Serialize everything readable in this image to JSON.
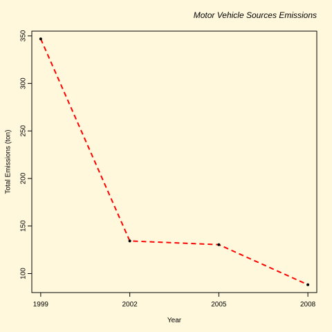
{
  "chart_data": {
    "type": "line",
    "title": "Motor Vehicle Sources Emissions",
    "xlabel": "Year",
    "ylabel": "Total Emissions (ton)",
    "x": [
      1999,
      2002,
      2005,
      2008
    ],
    "xticks": [
      "1999",
      "2002",
      "2005",
      "2008"
    ],
    "yticks": [
      100,
      150,
      200,
      250,
      300,
      350
    ],
    "xlim": [
      1998.7,
      2008.3
    ],
    "ylim": [
      80,
      355
    ],
    "series": [
      {
        "values": [
          346.8,
          134.3,
          130.4,
          88.3
        ]
      }
    ],
    "grid": false,
    "line_style": "dashed",
    "line_color": "#FF0000",
    "marker_color": "#000000",
    "background": "#FFF8DC"
  }
}
